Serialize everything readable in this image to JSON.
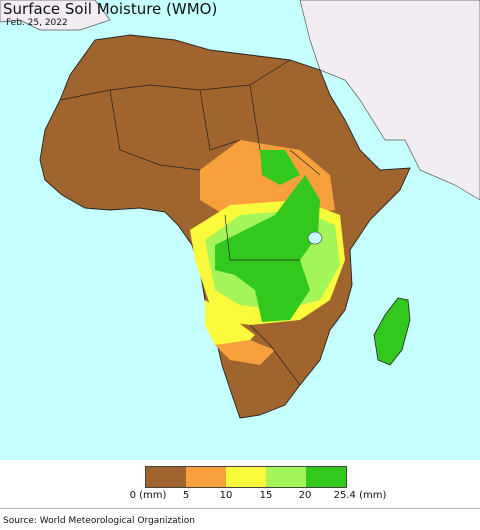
{
  "map": {
    "title": "Surface Soil Moisture (WMO)",
    "date": "Feb. 25, 2022",
    "ocean_color": "#c6ffff",
    "outside_color": "#f1edf3"
  },
  "legend": {
    "colors": [
      "#a0642e",
      "#f7a03c",
      "#fafa3c",
      "#a4f55a",
      "#32c81e"
    ],
    "ticks": [
      "0 (mm)",
      "5",
      "10",
      "15",
      "20",
      "25.4 (mm)"
    ]
  },
  "footer": {
    "source": "Source: World Meteorological Organization"
  }
}
